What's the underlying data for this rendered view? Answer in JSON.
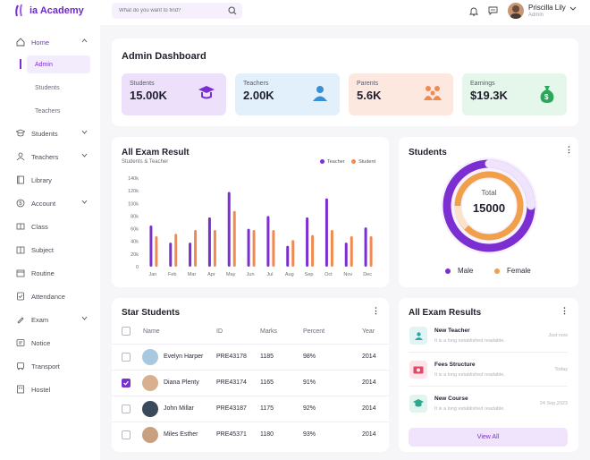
{
  "app": {
    "name": "ia Academy"
  },
  "search": {
    "placeholder": "What do you want to find?"
  },
  "user": {
    "name": "Priscilla Lily",
    "role": "Admin"
  },
  "sidebar": {
    "home": "Home",
    "sub": [
      "Admin",
      "Students",
      "Teachers"
    ],
    "items": [
      "Students",
      "Teachers",
      "Library",
      "Account",
      "Class",
      "Subject",
      "Routine",
      "Attendance",
      "Exam",
      "Notice",
      "Transport",
      "Hostel"
    ]
  },
  "dashboard": {
    "title": "Admin Dashboard"
  },
  "stats": [
    {
      "label": "Students",
      "value": "15.00K",
      "icon": "graduate-icon",
      "bg": "#ece0fb"
    },
    {
      "label": "Teachers",
      "value": "2.00K",
      "icon": "teacher-icon",
      "bg": "#e1f0fb"
    },
    {
      "label": "Parents",
      "value": "5.6K",
      "icon": "parents-icon",
      "bg": "#fde8e0"
    },
    {
      "label": "Earnings",
      "value": "$19.3K",
      "icon": "money-bag-icon",
      "bg": "#e4f7ea"
    }
  ],
  "exam_chart": {
    "title": "All Exam Result",
    "subtitle": "Students & Teacher",
    "legend": [
      "Teacher",
      "Student"
    ]
  },
  "chart_data": {
    "type": "bar",
    "categories": [
      "Jan",
      "Feb",
      "Mar",
      "Apr",
      "May",
      "Jun",
      "Jul",
      "Aug",
      "Sep",
      "Oct",
      "Nov",
      "Dec"
    ],
    "series": [
      {
        "name": "Teacher",
        "color": "#7b2fd0",
        "values": [
          65,
          38,
          38,
          78,
          118,
          60,
          80,
          33,
          78,
          108,
          38,
          62
        ]
      },
      {
        "name": "Student",
        "color": "#f08a50",
        "values": [
          48,
          52,
          58,
          58,
          88,
          58,
          58,
          42,
          50,
          58,
          48,
          48
        ]
      }
    ],
    "yticks": [
      "0",
      "20k",
      "40k",
      "60k",
      "80k",
      "100k",
      "120k",
      "140k"
    ],
    "ylim": [
      0,
      140
    ]
  },
  "students_donut": {
    "title": "Students",
    "total_label": "Total",
    "total": "15000",
    "male_label": "Male",
    "female_label": "Female",
    "male_color": "#7b2fd0",
    "female_color": "#f0a04b"
  },
  "star_students": {
    "title": "Star Students",
    "columns": [
      "Name",
      "ID",
      "Marks",
      "Percent",
      "Year"
    ],
    "rows": [
      {
        "name": "Evelyn Harper",
        "id": "PRE43178",
        "marks": "1185",
        "percent": "98%",
        "year": "2014",
        "checked": false,
        "avatar": "#a8c8e0"
      },
      {
        "name": "Diana Plenty",
        "id": "PRE43174",
        "marks": "1165",
        "percent": "91%",
        "year": "2014",
        "checked": true,
        "avatar": "#d8b090"
      },
      {
        "name": "John Millar",
        "id": "PRE43187",
        "marks": "1175",
        "percent": "92%",
        "year": "2014",
        "checked": false,
        "avatar": "#3a4a5a"
      },
      {
        "name": "Miles Esther",
        "id": "PRE45371",
        "marks": "1180",
        "percent": "93%",
        "year": "2014",
        "checked": false,
        "avatar": "#c8a080"
      }
    ]
  },
  "exam_results": {
    "title": "All Exam Results",
    "items": [
      {
        "title": "New Teacher",
        "desc": "It is a long established readable.",
        "when": "Just now",
        "icon": "teacher-icon",
        "bg": "#e0f4f4"
      },
      {
        "title": "Fees Structure",
        "desc": "It is a long established readable.",
        "when": "Today",
        "icon": "money-icon",
        "bg": "#fde4e8"
      },
      {
        "title": "New Course",
        "desc": "It is a long established readable.",
        "when": "24 Sep,2023",
        "icon": "course-icon",
        "bg": "#e0f4f0"
      }
    ],
    "view_all": "View All"
  }
}
